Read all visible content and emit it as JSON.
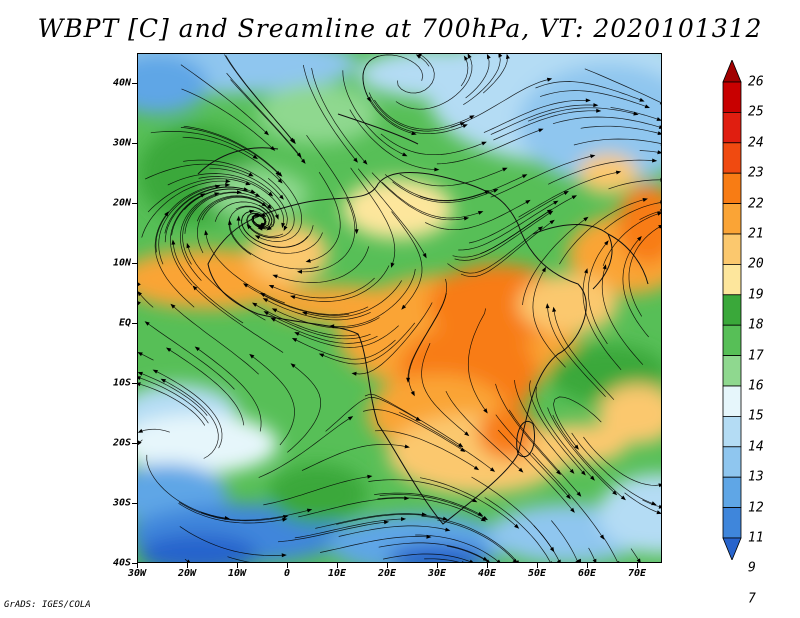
{
  "title": "WBPT [C] and Sreamline at 700hPa, VT: 2020101312",
  "credit": "GrADS: IGES/COLA",
  "map": {
    "projection": "latlon",
    "lon_range": [
      -30,
      75
    ],
    "lat_range": [
      -40,
      45
    ],
    "lat_labels": [
      "40N",
      "30N",
      "20N",
      "10N",
      "EQ",
      "10S",
      "20S",
      "30S",
      "40S"
    ],
    "lon_labels": [
      "30W",
      "20W",
      "10W",
      "0",
      "10E",
      "20E",
      "30E",
      "40E",
      "50E",
      "60E",
      "70E"
    ],
    "fill_field": "wet-bulb potential temperature",
    "overlay": "streamlines"
  },
  "colorbar": {
    "labels": [
      "26",
      "25",
      "24",
      "23",
      "22",
      "21",
      "20",
      "19",
      "18",
      "17",
      "16",
      "15",
      "14",
      "13",
      "12",
      "11",
      "9",
      "7"
    ],
    "colors": [
      "#a10000",
      "#c80000",
      "#e01e10",
      "#f04a10",
      "#f87c14",
      "#faa436",
      "#fbc86e",
      "#fde69c",
      "#3aa83a",
      "#57bf57",
      "#8fd88f",
      "#e6f6fb",
      "#b4dcf4",
      "#8fc6ef",
      "#5fa6e6",
      "#3f86db",
      "#2864cc"
    ]
  }
}
